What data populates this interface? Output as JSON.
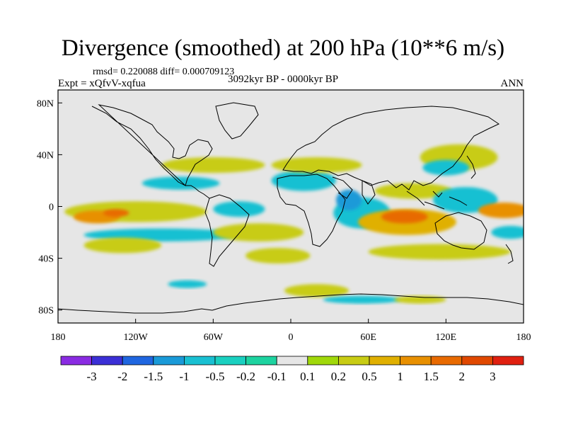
{
  "chart_data": {
    "type": "heatmap",
    "title": "Divergence (smoothed) at 200 hPa (10**6 m/s)",
    "stats_text": "rmsd= 0.220088 diff= 0.000709123",
    "experiment_label": "Expt = xQfvV-xqfua",
    "period_label": "3092kyr BP - 0000kyr BP",
    "season_label": "ANN",
    "xlabel": "",
    "ylabel": "",
    "xlim": [
      -180,
      180
    ],
    "ylim": [
      -90,
      90
    ],
    "x_ticks": [
      {
        "value": -180,
        "label": "180"
      },
      {
        "value": -120,
        "label": "120W"
      },
      {
        "value": -60,
        "label": "60W"
      },
      {
        "value": 0,
        "label": "0"
      },
      {
        "value": 60,
        "label": "60E"
      },
      {
        "value": 120,
        "label": "120E"
      },
      {
        "value": 180,
        "label": "180"
      }
    ],
    "y_ticks": [
      {
        "value": 80,
        "label": "80N"
      },
      {
        "value": 40,
        "label": "40N"
      },
      {
        "value": 0,
        "label": "0"
      },
      {
        "value": -40,
        "label": "40S"
      },
      {
        "value": -80,
        "label": "80S"
      }
    ],
    "colorbar": {
      "levels": [
        "-3",
        "-2",
        "-1.5",
        "-1",
        "-0.5",
        "-0.2",
        "-0.1",
        "0.1",
        "0.2",
        "0.5",
        "1",
        "1.5",
        "2",
        "3"
      ],
      "colors": [
        "#8a2be2",
        "#3b2fd6",
        "#1f66e0",
        "#1a9ad8",
        "#19c0d2",
        "#1ad0c0",
        "#1dd3a0",
        "#e6e6e6",
        "#a0d80a",
        "#c8cc14",
        "#e0b000",
        "#e89000",
        "#e86a00",
        "#e04800",
        "#e02010"
      ]
    },
    "anomaly_regions": [
      {
        "lon": -120,
        "lat": -4,
        "lon_radius": 55,
        "lat_radius": 8,
        "level": 9
      },
      {
        "lon": -150,
        "lat": -8,
        "lon_radius": 18,
        "lat_radius": 5,
        "level": 11
      },
      {
        "lon": -135,
        "lat": -5,
        "lon_radius": 10,
        "lat_radius": 3,
        "level": 12
      },
      {
        "lon": -100,
        "lat": -22,
        "lon_radius": 60,
        "lat_radius": 5,
        "level": 4
      },
      {
        "lon": -40,
        "lat": -2,
        "lon_radius": 20,
        "lat_radius": 6,
        "level": 4
      },
      {
        "lon": -130,
        "lat": -30,
        "lon_radius": 30,
        "lat_radius": 6,
        "level": 9
      },
      {
        "lon": -25,
        "lat": -20,
        "lon_radius": 35,
        "lat_radius": 7,
        "level": 9
      },
      {
        "lon": -60,
        "lat": 32,
        "lon_radius": 40,
        "lat_radius": 6,
        "level": 9
      },
      {
        "lon": -85,
        "lat": 18,
        "lon_radius": 30,
        "lat_radius": 5,
        "level": 4
      },
      {
        "lon": 10,
        "lat": 20,
        "lon_radius": 25,
        "lat_radius": 8,
        "level": 4
      },
      {
        "lon": 20,
        "lat": 32,
        "lon_radius": 35,
        "lat_radius": 6,
        "level": 9
      },
      {
        "lon": 55,
        "lat": -5,
        "lon_radius": 22,
        "lat_radius": 12,
        "level": 4
      },
      {
        "lon": 45,
        "lat": 5,
        "lon_radius": 10,
        "lat_radius": 8,
        "level": 3
      },
      {
        "lon": 90,
        "lat": -12,
        "lon_radius": 38,
        "lat_radius": 10,
        "level": 10
      },
      {
        "lon": 88,
        "lat": -8,
        "lon_radius": 18,
        "lat_radius": 5,
        "level": 12
      },
      {
        "lon": 115,
        "lat": -35,
        "lon_radius": 55,
        "lat_radius": 6,
        "level": 9
      },
      {
        "lon": 95,
        "lat": 12,
        "lon_radius": 30,
        "lat_radius": 6,
        "level": 9
      },
      {
        "lon": 135,
        "lat": 5,
        "lon_radius": 25,
        "lat_radius": 10,
        "level": 4
      },
      {
        "lon": 130,
        "lat": 38,
        "lon_radius": 30,
        "lat_radius": 10,
        "level": 9
      },
      {
        "lon": 120,
        "lat": 30,
        "lon_radius": 18,
        "lat_radius": 6,
        "level": 4
      },
      {
        "lon": 165,
        "lat": -3,
        "lon_radius": 20,
        "lat_radius": 6,
        "level": 11
      },
      {
        "lon": 170,
        "lat": -20,
        "lon_radius": 15,
        "lat_radius": 5,
        "level": 4
      },
      {
        "lon": 20,
        "lat": -65,
        "lon_radius": 25,
        "lat_radius": 5,
        "level": 9
      },
      {
        "lon": 55,
        "lat": -72,
        "lon_radius": 30,
        "lat_radius": 3,
        "level": 4
      },
      {
        "lon": 100,
        "lat": -72,
        "lon_radius": 20,
        "lat_radius": 3,
        "level": 9
      },
      {
        "lon": -80,
        "lat": -60,
        "lon_radius": 15,
        "lat_radius": 3,
        "level": 4
      },
      {
        "lon": -10,
        "lat": -38,
        "lon_radius": 25,
        "lat_radius": 6,
        "level": 9
      }
    ]
  }
}
